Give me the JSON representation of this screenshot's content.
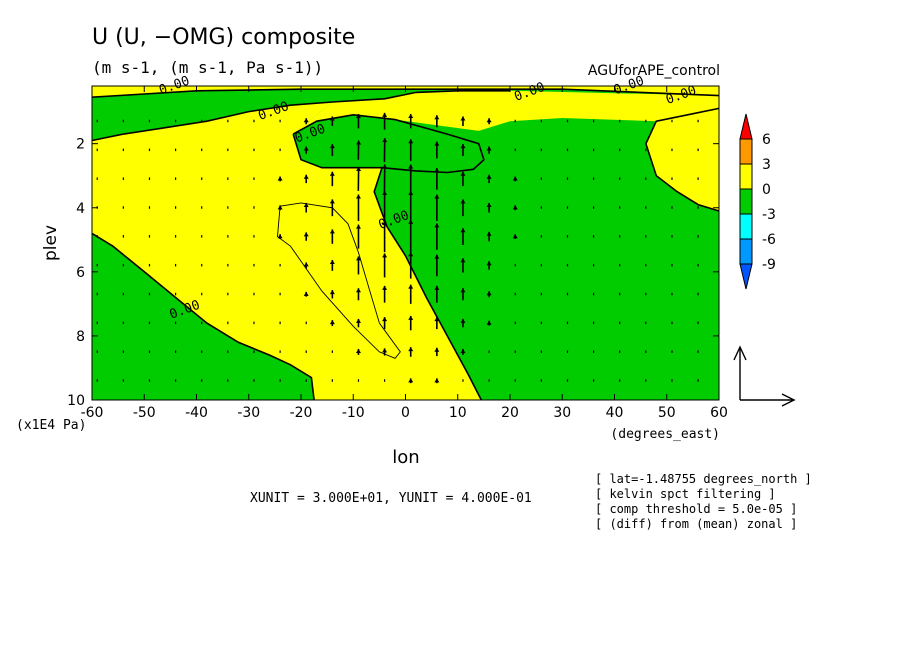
{
  "figure": {
    "title": "U (U, −OMG) composite",
    "units_line": "(m s-1, (m s-1, Pa s-1))",
    "experiment": "AGUforAPE_control",
    "xunit_text": "XUNIT = 3.000E+01, YUNIT = 4.000E-01",
    "info_lines": [
      "[ lat=-1.48755 degrees_north ]",
      "[ kelvin spct filtering ]",
      "[ comp threshold = 5.0e-05 ]",
      "[ (diff) from (mean) zonal ]"
    ]
  },
  "chart_data": {
    "type": "heatmap",
    "variable": "U composite with (U, -OMG) vectors",
    "xlabel": "lon",
    "xunits": "(degrees_east)",
    "ylabel": "plev",
    "yunits": "(x1E4 Pa)",
    "xlim": [
      -60,
      60
    ],
    "ylim": [
      10,
      0.2
    ],
    "y_axis_inverted": true,
    "x_ticks": [
      -60,
      -50,
      -40,
      -30,
      -20,
      -10,
      0,
      10,
      20,
      30,
      40,
      50,
      60
    ],
    "x_tick_labels": [
      "-60",
      "-50",
      "-40",
      "-30",
      "-20",
      "-10",
      "0",
      "10",
      "20",
      "30",
      "40",
      "50",
      "60"
    ],
    "y_ticks": [
      2,
      4,
      6,
      8,
      10
    ],
    "y_tick_labels": [
      "2",
      "4",
      "6",
      "8",
      "10"
    ],
    "colorbar": {
      "levels": [
        6,
        3,
        0,
        -3,
        -6,
        -9
      ],
      "labels": [
        "6",
        "3",
        "0",
        "-3",
        "-6",
        "-9"
      ],
      "colors": [
        "#ff0000",
        "#ff9900",
        "#ffff00",
        "#00cc00",
        "#00ffff",
        "#0099ff",
        "#0055ff"
      ],
      "extend": "both"
    },
    "fill_colors": {
      "positive_0_3": "#ffff00",
      "negative_m3_0": "#00cc00"
    },
    "contour_labels": [
      {
        "text": "0.00",
        "x": -44,
        "y": 0.3
      },
      {
        "text": "0.00",
        "x": -25,
        "y": 1.1
      },
      {
        "text": "0.00",
        "x": -18,
        "y": 1.8
      },
      {
        "text": "0.00",
        "x": -2,
        "y": 4.5
      },
      {
        "text": "0.00",
        "x": -42,
        "y": 7.3
      },
      {
        "text": "0.00",
        "x": 24,
        "y": 0.5
      },
      {
        "text": "0.00",
        "x": 43,
        "y": 0.3
      },
      {
        "text": "0.00",
        "x": 53,
        "y": 0.6
      }
    ],
    "zero_contours": [
      {
        "name": "west-lower",
        "points": [
          [
            -60,
            4.8
          ],
          [
            -56,
            5.2
          ],
          [
            -50,
            6.0
          ],
          [
            -44,
            6.8
          ],
          [
            -38,
            7.6
          ],
          [
            -32,
            8.2
          ],
          [
            -26,
            8.6
          ],
          [
            -22,
            8.9
          ],
          [
            -18,
            9.3
          ],
          [
            -17.5,
            10
          ]
        ]
      },
      {
        "name": "west-upper",
        "points": [
          [
            -60,
            1.9
          ],
          [
            -54,
            1.7
          ],
          [
            -46,
            1.5
          ],
          [
            -38,
            1.3
          ],
          [
            -30,
            1.0
          ],
          [
            -22,
            0.8
          ],
          [
            -14,
            0.7
          ],
          [
            -4,
            0.6
          ],
          [
            2,
            0.4
          ],
          [
            10,
            0.35
          ],
          [
            20,
            0.35
          ]
        ]
      },
      {
        "name": "central",
        "points": [
          [
            -21.5,
            1.7
          ],
          [
            -20,
            2.5
          ],
          [
            -16,
            2.75
          ],
          [
            -10,
            2.75
          ],
          [
            -4.5,
            2.75
          ],
          [
            -6,
            3.5
          ],
          [
            -3.5,
            4.6
          ],
          [
            0,
            5.5
          ],
          [
            4,
            6.8
          ],
          [
            8,
            8.0
          ],
          [
            12,
            9.2
          ],
          [
            14.5,
            10
          ]
        ]
      },
      {
        "name": "central-top",
        "points": [
          [
            -21.5,
            1.7
          ],
          [
            -17,
            1.3
          ],
          [
            -10,
            1.1
          ],
          [
            -2,
            1.25
          ],
          [
            8,
            1.7
          ],
          [
            14,
            2.0
          ],
          [
            15,
            2.5
          ],
          [
            13,
            2.8
          ],
          [
            8,
            2.9
          ],
          [
            2,
            2.85
          ],
          [
            -4.5,
            2.75
          ]
        ]
      },
      {
        "name": "east",
        "points": [
          [
            60,
            0.9
          ],
          [
            54,
            1.1
          ],
          [
            48,
            1.3
          ],
          [
            46,
            2.0
          ],
          [
            48,
            3.0
          ],
          [
            52,
            3.5
          ],
          [
            56,
            3.9
          ],
          [
            60,
            4.1
          ]
        ]
      },
      {
        "name": "top-strip",
        "points": [
          [
            -60,
            0.55
          ],
          [
            -50,
            0.45
          ],
          [
            -40,
            0.35
          ],
          [
            -20,
            0.3
          ],
          [
            0,
            0.3
          ],
          [
            30,
            0.3
          ],
          [
            60,
            0.5
          ]
        ]
      }
    ],
    "positive_contours": [
      {
        "value": 1,
        "points": [
          [
            -24,
            3.95
          ],
          [
            -20,
            3.85
          ],
          [
            -14,
            4.0
          ],
          [
            -11,
            4.5
          ],
          [
            -9,
            5.4
          ],
          [
            -7,
            6.5
          ],
          [
            -5,
            7.6
          ],
          [
            -1,
            8.5
          ],
          [
            -2,
            8.7
          ],
          [
            -5,
            8.5
          ],
          [
            -10,
            7.7
          ],
          [
            -16,
            6.6
          ],
          [
            -22,
            5.2
          ],
          [
            -24.5,
            4.9
          ],
          [
            -24,
            3.95
          ]
        ]
      }
    ],
    "vector_field": {
      "x": [
        -59,
        -54,
        -49,
        -44,
        -39,
        -34,
        -29,
        -24,
        -19,
        -14,
        -9,
        -4,
        1,
        6,
        11,
        16,
        21,
        26,
        31,
        36,
        41,
        46,
        51,
        56
      ],
      "y": [
        1.3,
        2.2,
        3.1,
        4.0,
        4.9,
        5.8,
        6.7,
        7.6,
        8.5,
        9.4
      ],
      "u": [
        [
          0,
          0,
          0,
          0,
          0,
          0,
          0,
          0,
          0,
          0,
          0,
          0,
          0,
          0,
          0,
          0,
          0,
          0,
          0,
          0,
          0,
          0,
          0,
          0
        ],
        [
          0,
          0,
          0,
          0,
          0,
          0,
          0,
          0,
          0,
          0,
          0.1,
          0.1,
          0,
          0,
          0,
          0,
          0,
          0,
          0,
          0,
          0,
          0,
          0,
          0
        ],
        [
          0,
          0,
          0,
          0,
          0,
          0,
          0,
          0,
          0,
          0,
          0.1,
          0.1,
          0,
          0,
          0,
          0,
          0,
          0,
          0,
          0,
          0,
          0,
          0,
          0
        ],
        [
          0,
          0,
          0,
          0,
          0,
          0,
          0,
          0,
          0,
          0,
          0,
          0,
          0,
          0,
          0,
          0,
          0,
          0,
          0,
          0,
          0,
          0,
          0,
          0
        ],
        [
          0,
          0,
          0,
          0,
          0,
          0,
          0,
          0,
          0,
          0,
          0,
          0,
          0,
          0,
          0,
          0,
          0,
          0,
          0,
          0,
          0,
          0,
          0,
          0
        ],
        [
          0,
          0,
          0,
          0,
          0,
          0,
          0,
          0,
          0,
          0,
          0,
          0,
          0,
          0,
          0,
          0,
          0,
          0,
          0,
          0,
          0,
          0,
          0,
          0
        ],
        [
          0,
          0,
          0,
          0,
          0,
          0,
          0,
          0,
          0,
          0,
          0,
          0,
          0,
          0,
          0,
          0,
          0,
          0,
          0,
          0,
          0,
          0,
          0,
          0
        ],
        [
          0,
          0,
          0,
          0,
          0,
          0,
          0,
          0,
          0,
          0,
          0,
          0,
          0,
          0,
          0,
          0,
          0,
          0,
          0,
          0,
          0,
          0,
          0,
          0
        ],
        [
          0,
          0,
          0,
          0,
          0,
          0,
          0,
          0,
          0,
          0,
          0,
          0,
          0,
          0,
          0,
          0,
          0,
          0,
          0,
          0,
          0,
          0,
          0,
          0
        ],
        [
          0,
          0,
          0,
          0,
          0,
          0,
          0,
          0,
          0,
          0,
          0,
          0,
          0,
          0,
          0,
          0,
          0,
          0,
          0,
          0,
          0,
          0,
          0,
          0
        ]
      ],
      "w": [
        [
          0.02,
          0.02,
          0.02,
          0.02,
          0.02,
          0.02,
          0.02,
          0.02,
          0.05,
          0.08,
          0.12,
          0.14,
          0.12,
          0.1,
          0.08,
          0.05,
          0.03,
          0.02,
          0.02,
          0.02,
          0.02,
          0.02,
          0.02,
          0.02
        ],
        [
          0.02,
          0.02,
          0.02,
          0.02,
          0.02,
          0.02,
          0.02,
          0.03,
          0.06,
          0.1,
          0.16,
          0.2,
          0.18,
          0.14,
          0.1,
          0.06,
          0.03,
          0.02,
          0.02,
          0.02,
          0.02,
          0.02,
          0.02,
          0.02
        ],
        [
          0.02,
          0.02,
          0.02,
          0.02,
          0.02,
          0.02,
          0.02,
          0.04,
          0.07,
          0.12,
          0.2,
          0.24,
          0.24,
          0.18,
          0.12,
          0.07,
          0.04,
          0.02,
          0.02,
          0.02,
          0.02,
          0.02,
          0.02,
          0.02
        ],
        [
          0.02,
          0.02,
          0.02,
          0.02,
          0.02,
          0.02,
          0.03,
          0.04,
          0.08,
          0.14,
          0.22,
          0.28,
          0.28,
          0.22,
          0.14,
          0.08,
          0.04,
          0.02,
          0.02,
          0.02,
          0.02,
          0.02,
          0.02,
          0.02
        ],
        [
          0.02,
          0.02,
          0.02,
          0.02,
          0.02,
          0.02,
          0.03,
          0.04,
          0.07,
          0.12,
          0.2,
          0.26,
          0.28,
          0.22,
          0.14,
          0.08,
          0.04,
          0.02,
          0.02,
          0.02,
          0.02,
          0.02,
          0.02,
          0.02
        ],
        [
          0.02,
          0.02,
          0.02,
          0.02,
          0.02,
          0.02,
          0.02,
          0.03,
          0.05,
          0.09,
          0.15,
          0.2,
          0.22,
          0.18,
          0.12,
          0.07,
          0.03,
          0.02,
          0.02,
          0.02,
          0.02,
          0.02,
          0.02,
          0.02
        ],
        [
          0.02,
          0.02,
          0.02,
          0.02,
          0.02,
          0.02,
          0.02,
          0.02,
          0.04,
          0.07,
          0.1,
          0.14,
          0.16,
          0.14,
          0.1,
          0.05,
          0.03,
          0.02,
          0.02,
          0.02,
          0.02,
          0.02,
          0.02,
          0.02
        ],
        [
          0.02,
          0.02,
          0.02,
          0.02,
          0.02,
          0.02,
          0.02,
          0.02,
          0.03,
          0.05,
          0.07,
          0.1,
          0.12,
          0.1,
          0.07,
          0.04,
          0.02,
          0.02,
          0.02,
          0.02,
          0.02,
          0.02,
          0.02,
          0.02
        ],
        [
          0.02,
          0.02,
          0.02,
          0.02,
          0.02,
          0.02,
          0.02,
          0.02,
          0.02,
          0.03,
          0.05,
          0.06,
          0.08,
          0.07,
          0.05,
          0.03,
          0.02,
          0.02,
          0.02,
          0.02,
          0.02,
          0.02,
          0.02,
          0.02
        ],
        [
          0.02,
          0.02,
          0.02,
          0.02,
          0.02,
          0.02,
          0.02,
          0.02,
          0.02,
          0.02,
          0.03,
          0.03,
          0.04,
          0.04,
          0.03,
          0.02,
          0.02,
          0.02,
          0.02,
          0.02,
          0.02,
          0.02,
          0.02,
          0.02
        ]
      ]
    },
    "reference_vector": {
      "x_unit": 30.0,
      "y_unit": 0.4
    }
  }
}
